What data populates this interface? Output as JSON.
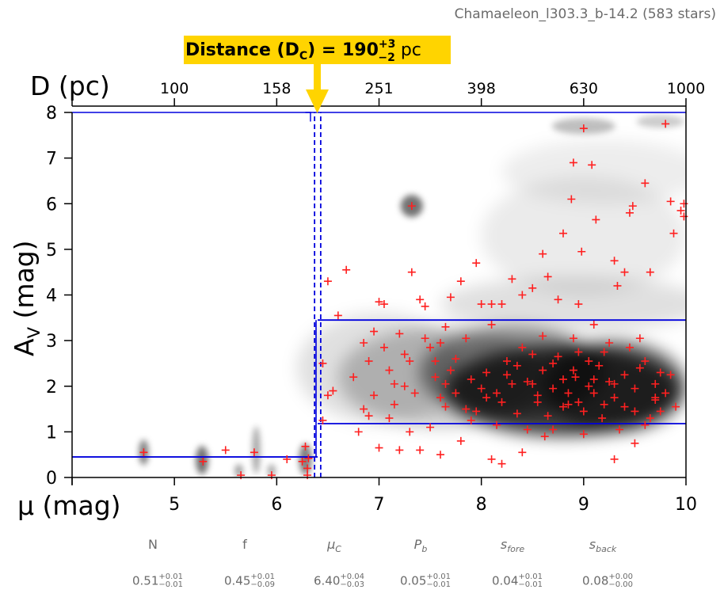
{
  "header": {
    "title": "Chamaeleon_l303.3_b-14.2 (583 stars)"
  },
  "banner": {
    "prefix": "Distance (D",
    "sub": "C",
    "mid": ") = 190",
    "plus": "+3",
    "minus": "−2",
    "unit": " pc"
  },
  "chart_data": {
    "type": "scatter",
    "title": "",
    "xlabel": "μ (mag)",
    "ylabel": "A_V (mag)",
    "top_axis_label": "D (pc)",
    "xlim": [
      4,
      10
    ],
    "ylim": [
      0,
      8
    ],
    "x_ticks": [
      4,
      5,
      6,
      7,
      8,
      9,
      10
    ],
    "x_tick_labels": [
      "4",
      "5",
      "6",
      "7",
      "8",
      "9",
      "10"
    ],
    "y_ticks": [
      0,
      1,
      2,
      3,
      4,
      5,
      6,
      7,
      8
    ],
    "y_tick_labels": [
      "0",
      "1",
      "2",
      "3",
      "4",
      "5",
      "6",
      "7",
      "8"
    ],
    "top_ticks_mu": [
      5,
      6,
      7,
      8,
      9,
      10
    ],
    "top_tick_labels": [
      "100",
      "158",
      "251",
      "398",
      "630",
      "1000"
    ],
    "distance_modulus_cloud": 6.4,
    "distance_modulus_bounds": [
      6.37,
      6.43
    ],
    "foreground_extinction": 0.45,
    "cloud_extinction_band": [
      1.18,
      3.45
    ],
    "series": [
      {
        "name": "stars",
        "marker": "+",
        "color": "#ff2020",
        "points": [
          [
            4.7,
            0.55
          ],
          [
            5.28,
            0.35
          ],
          [
            5.5,
            0.6
          ],
          [
            5.65,
            0.05
          ],
          [
            5.78,
            0.55
          ],
          [
            5.95,
            0.05
          ],
          [
            6.1,
            0.4
          ],
          [
            6.25,
            0.35
          ],
          [
            6.28,
            0.68
          ],
          [
            6.3,
            0.05
          ],
          [
            6.31,
            0.42
          ],
          [
            6.3,
            0.2
          ],
          [
            6.5,
            4.3
          ],
          [
            6.68,
            4.55
          ],
          [
            6.45,
            2.5
          ],
          [
            6.5,
            1.8
          ],
          [
            6.55,
            1.9
          ],
          [
            6.45,
            1.25
          ],
          [
            6.6,
            3.55
          ],
          [
            6.75,
            2.2
          ],
          [
            6.8,
            1.0
          ],
          [
            6.85,
            2.95
          ],
          [
            6.9,
            2.55
          ],
          [
            6.95,
            3.2
          ],
          [
            7.0,
            3.85
          ],
          [
            7.05,
            3.8
          ],
          [
            7.1,
            2.35
          ],
          [
            7.15,
            2.05
          ],
          [
            7.2,
            3.15
          ],
          [
            7.25,
            2.7
          ],
          [
            7.3,
            2.55
          ],
          [
            7.32,
            4.5
          ],
          [
            7.32,
            5.95
          ],
          [
            7.4,
            3.9
          ],
          [
            7.45,
            3.75
          ],
          [
            7.5,
            2.85
          ],
          [
            7.55,
            2.2
          ],
          [
            7.6,
            1.75
          ],
          [
            7.65,
            3.3
          ],
          [
            7.7,
            3.95
          ],
          [
            7.75,
            2.6
          ],
          [
            7.8,
            4.3
          ],
          [
            7.85,
            1.5
          ],
          [
            7.9,
            1.25
          ],
          [
            7.95,
            4.7
          ],
          [
            8.0,
            3.8
          ],
          [
            8.05,
            2.3
          ],
          [
            8.1,
            3.8
          ],
          [
            8.15,
            1.85
          ],
          [
            8.2,
            3.8
          ],
          [
            8.25,
            2.55
          ],
          [
            8.3,
            4.35
          ],
          [
            8.35,
            1.4
          ],
          [
            8.4,
            4.0
          ],
          [
            8.45,
            2.1
          ],
          [
            8.5,
            4.15
          ],
          [
            8.55,
            1.8
          ],
          [
            8.6,
            4.9
          ],
          [
            8.62,
            0.9
          ],
          [
            8.65,
            4.4
          ],
          [
            8.7,
            2.5
          ],
          [
            8.75,
            3.9
          ],
          [
            8.8,
            5.35
          ],
          [
            8.85,
            1.6
          ],
          [
            8.88,
            6.1
          ],
          [
            8.9,
            6.9
          ],
          [
            8.92,
            2.2
          ],
          [
            8.95,
            3.8
          ],
          [
            8.98,
            4.95
          ],
          [
            9.0,
            7.65
          ],
          [
            9.05,
            2.0
          ],
          [
            9.08,
            6.85
          ],
          [
            9.12,
            5.65
          ],
          [
            9.18,
            1.3
          ],
          [
            9.25,
            2.1
          ],
          [
            9.3,
            4.75
          ],
          [
            9.33,
            4.2
          ],
          [
            9.4,
            4.5
          ],
          [
            9.45,
            5.8
          ],
          [
            9.48,
            5.95
          ],
          [
            9.55,
            2.4
          ],
          [
            9.6,
            6.45
          ],
          [
            9.65,
            4.5
          ],
          [
            9.7,
            1.7
          ],
          [
            9.75,
            2.3
          ],
          [
            9.8,
            7.75
          ],
          [
            9.85,
            6.05
          ],
          [
            9.88,
            5.35
          ],
          [
            9.9,
            1.55
          ],
          [
            9.95,
            5.85
          ],
          [
            9.98,
            6.0
          ],
          [
            9.98,
            5.72
          ],
          [
            8.2,
            0.3
          ],
          [
            8.4,
            0.55
          ],
          [
            8.1,
            0.4
          ],
          [
            9.3,
            0.4
          ],
          [
            9.5,
            0.75
          ],
          [
            7.8,
            0.8
          ],
          [
            7.6,
            0.5
          ],
          [
            7.4,
            0.6
          ],
          [
            7.2,
            0.6
          ],
          [
            7.0,
            0.65
          ],
          [
            6.9,
            1.35
          ],
          [
            7.1,
            1.3
          ],
          [
            7.3,
            1.0
          ],
          [
            7.5,
            1.1
          ],
          [
            8.5,
            2.7
          ],
          [
            8.7,
            1.95
          ],
          [
            8.9,
            2.35
          ],
          [
            9.1,
            1.85
          ],
          [
            9.2,
            2.75
          ],
          [
            9.4,
            1.55
          ],
          [
            8.3,
            2.05
          ],
          [
            8.0,
            1.95
          ],
          [
            8.8,
            1.55
          ],
          [
            8.6,
            2.35
          ],
          [
            9.0,
            1.45
          ],
          [
            9.3,
            1.75
          ],
          [
            9.5,
            1.95
          ],
          [
            8.2,
            1.65
          ],
          [
            7.9,
            2.15
          ],
          [
            7.7,
            2.35
          ],
          [
            8.4,
            2.85
          ],
          [
            8.6,
            3.1
          ],
          [
            8.9,
            3.05
          ],
          [
            9.1,
            3.35
          ],
          [
            7.6,
            2.95
          ],
          [
            8.1,
            3.35
          ],
          [
            7.85,
            3.05
          ],
          [
            9.6,
            2.55
          ],
          [
            9.7,
            2.05
          ],
          [
            9.8,
            1.85
          ],
          [
            9.65,
            1.3
          ],
          [
            9.35,
            1.05
          ],
          [
            9.0,
            0.95
          ],
          [
            8.7,
            1.05
          ],
          [
            8.45,
            1.05
          ],
          [
            8.15,
            1.15
          ],
          [
            7.95,
            1.45
          ],
          [
            7.65,
            1.55
          ],
          [
            7.35,
            1.85
          ],
          [
            7.25,
            2.0
          ],
          [
            7.15,
            1.6
          ],
          [
            6.95,
            1.8
          ],
          [
            6.85,
            1.5
          ],
          [
            7.05,
            2.85
          ],
          [
            7.45,
            3.05
          ],
          [
            7.55,
            2.55
          ],
          [
            8.75,
            2.65
          ],
          [
            8.95,
            2.75
          ],
          [
            9.15,
            2.45
          ],
          [
            9.25,
            2.95
          ],
          [
            9.45,
            2.85
          ],
          [
            9.55,
            3.05
          ],
          [
            8.35,
            2.45
          ],
          [
            8.55,
            1.65
          ],
          [
            8.85,
            1.85
          ],
          [
            9.05,
            2.55
          ],
          [
            9.2,
            1.6
          ],
          [
            9.4,
            2.25
          ],
          [
            9.6,
            1.15
          ],
          [
            9.75,
            1.45
          ],
          [
            9.85,
            2.25
          ],
          [
            7.75,
            1.85
          ],
          [
            7.65,
            2.05
          ],
          [
            8.05,
            1.75
          ],
          [
            8.25,
            2.25
          ],
          [
            8.5,
            2.05
          ],
          [
            8.65,
            1.35
          ],
          [
            8.8,
            2.15
          ],
          [
            8.95,
            1.65
          ],
          [
            9.1,
            2.15
          ],
          [
            9.3,
            2.05
          ],
          [
            9.5,
            1.45
          ],
          [
            9.7,
            1.75
          ]
        ]
      }
    ]
  },
  "params": {
    "names": [
      "N",
      "f",
      "μ_C",
      "P_b",
      "s_fore",
      "s_back"
    ],
    "values": [
      {
        "main": "0.51",
        "plus": "+0.01",
        "minus": "−0.01"
      },
      {
        "main": "0.45",
        "plus": "+0.01",
        "minus": "−0.09"
      },
      {
        "main": "6.40",
        "plus": "+0.04",
        "minus": "−0.03"
      },
      {
        "main": "0.05",
        "plus": "+0.01",
        "minus": "−0.01"
      },
      {
        "main": "0.04",
        "plus": "+0.01",
        "minus": "−0.01"
      },
      {
        "main": "0.08",
        "plus": "+0.00",
        "minus": "−0.00"
      }
    ]
  },
  "colors": {
    "banner": "#ffd400",
    "model": "#0000dd",
    "stars": "#ff2020",
    "text_muted": "#6b6b6b"
  }
}
